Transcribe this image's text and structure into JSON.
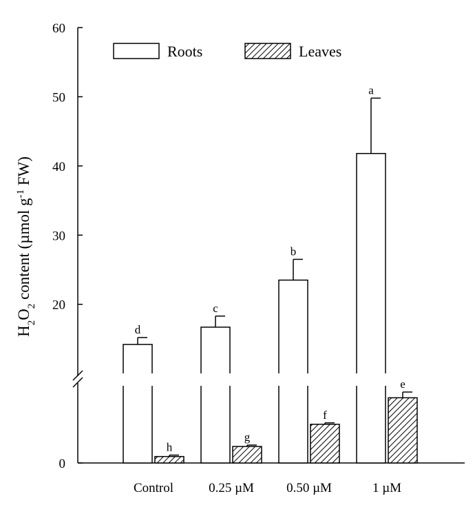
{
  "chart_data": {
    "type": "bar",
    "ylabel_parts": [
      "H",
      "2",
      "O",
      "2",
      " content (µmol g",
      "-1",
      " FW)"
    ],
    "categories": [
      "Control",
      "0.25 µM",
      "0.50 µM",
      "1 µM"
    ],
    "y_axis": {
      "break": true,
      "lower_segment": {
        "range": [
          0,
          10
        ],
        "ticks": [
          0
        ]
      },
      "upper_segment": {
        "range": [
          13,
          60
        ],
        "ticks": [
          20,
          30,
          40,
          50,
          60
        ]
      }
    },
    "series": [
      {
        "name": "Roots",
        "pattern": "open",
        "values": [
          14.2,
          16.7,
          23.5,
          41.8
        ],
        "errors": [
          1.0,
          1.6,
          3.0,
          8.0
        ],
        "letters": [
          "d",
          "c",
          "b",
          "a"
        ]
      },
      {
        "name": "Leaves",
        "pattern": "hatched",
        "values": [
          0.9,
          2.3,
          5.4,
          9.1
        ],
        "errors": [
          0.2,
          0.2,
          0.2,
          0.8
        ],
        "letters": [
          "h",
          "g",
          "f",
          "e"
        ]
      }
    ],
    "legend": "top-left",
    "grid": false
  }
}
